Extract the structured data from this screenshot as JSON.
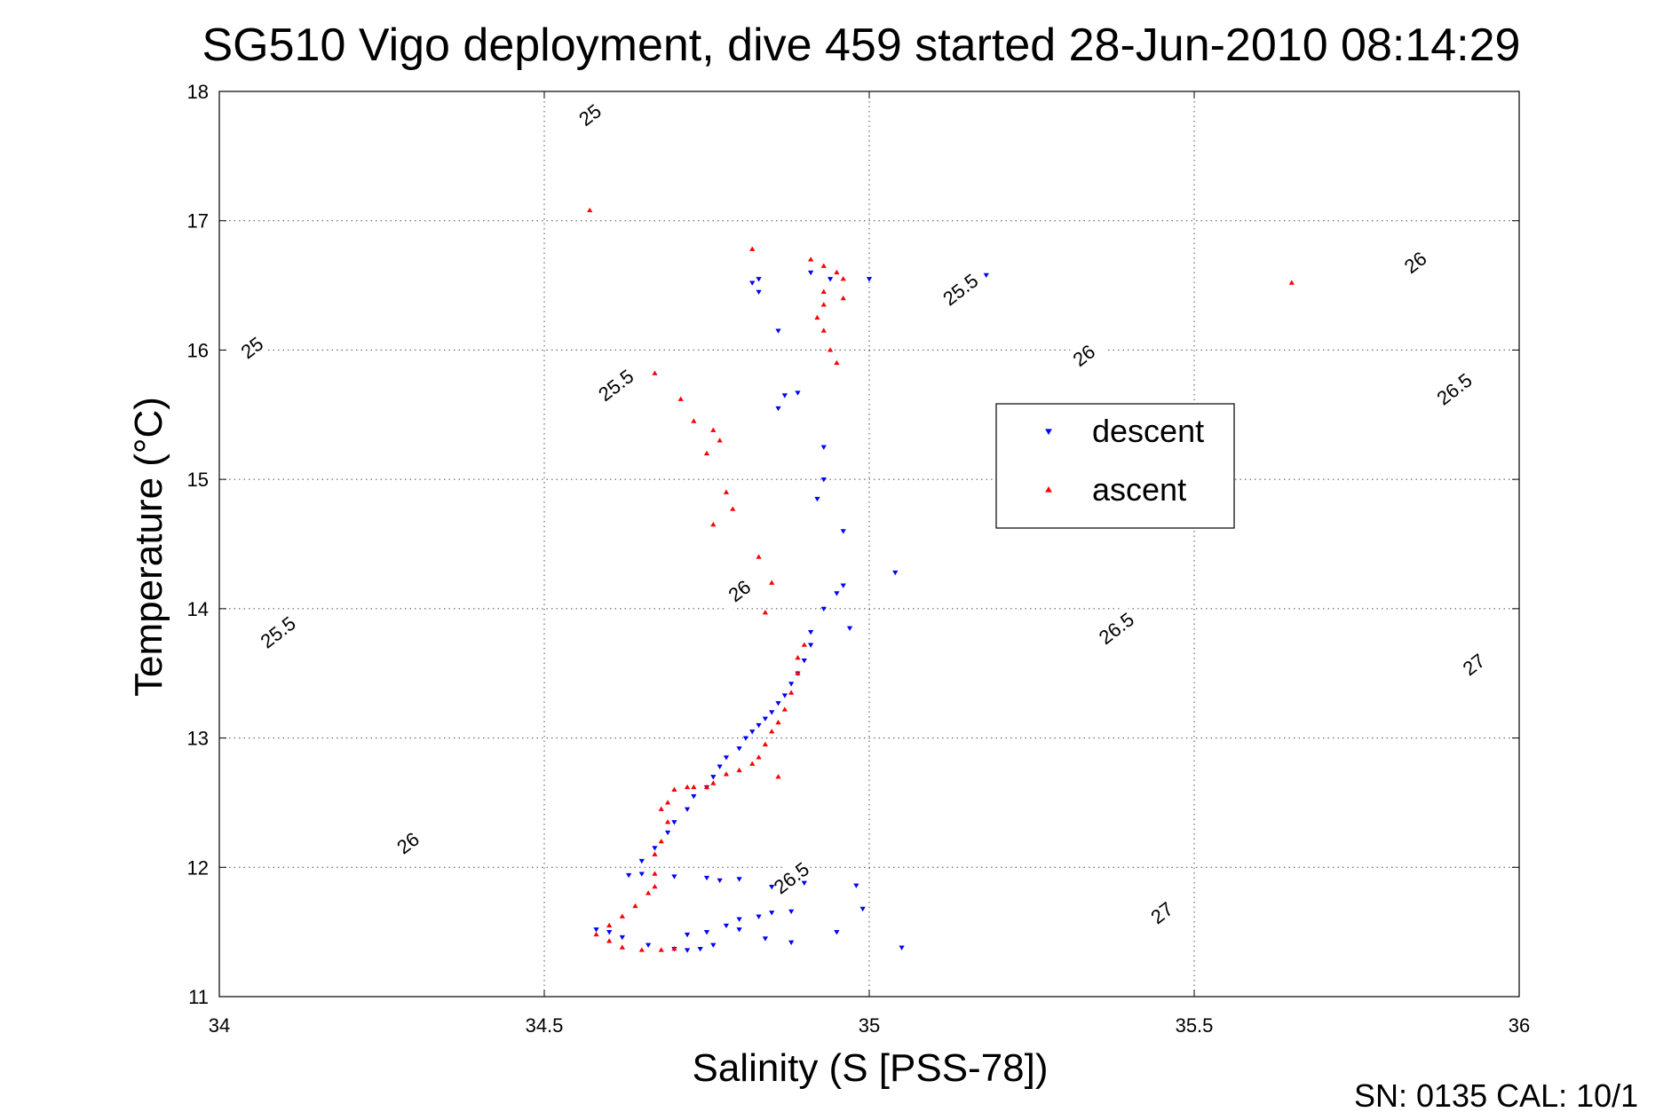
{
  "chart_data": {
    "type": "scatter",
    "title": "SG510 Vigo deployment, dive 459 started 28-Jun-2010 08:14:29",
    "xlabel": "Salinity (S [PSS-78])",
    "ylabel": "Temperature (°C)",
    "xlim": [
      34,
      36
    ],
    "ylim": [
      11,
      18
    ],
    "xticks": [
      "34",
      "34.5",
      "35",
      "35.5",
      "36"
    ],
    "yticks": [
      "11",
      "12",
      "13",
      "14",
      "15",
      "16",
      "17",
      "18"
    ],
    "grid": true,
    "legend_position": "center-right",
    "footer": "SN: 0135  CAL: 10/1",
    "density_contours": {
      "levels": [
        25,
        25.5,
        26,
        26.5,
        27
      ],
      "labels": [
        {
          "text": "25",
          "s": 34.57,
          "t": 17.82
        },
        {
          "text": "25",
          "s": 34.05,
          "t": 16.02
        },
        {
          "text": "25.5",
          "s": 35.14,
          "t": 16.47
        },
        {
          "text": "25.5",
          "s": 34.61,
          "t": 15.73
        },
        {
          "text": "25.5",
          "s": 34.09,
          "t": 13.82
        },
        {
          "text": "26",
          "s": 35.84,
          "t": 16.68
        },
        {
          "text": "26",
          "s": 35.33,
          "t": 15.96
        },
        {
          "text": "26",
          "s": 34.8,
          "t": 14.14
        },
        {
          "text": "26",
          "s": 34.29,
          "t": 12.19
        },
        {
          "text": "26.5",
          "s": 35.9,
          "t": 15.7
        },
        {
          "text": "26.5",
          "s": 35.38,
          "t": 13.85
        },
        {
          "text": "26.5",
          "s": 34.88,
          "t": 11.92
        },
        {
          "text": "27",
          "s": 35.93,
          "t": 13.57
        },
        {
          "text": "27",
          "s": 35.45,
          "t": 11.65
        }
      ]
    },
    "series": [
      {
        "name": "descent",
        "color": "#0000ff",
        "marker": "triangle-down",
        "points": [
          [
            34.58,
            11.52
          ],
          [
            34.6,
            11.5
          ],
          [
            34.62,
            11.46
          ],
          [
            34.66,
            11.4
          ],
          [
            34.7,
            11.37
          ],
          [
            34.72,
            11.36
          ],
          [
            34.74,
            11.37
          ],
          [
            34.76,
            11.4
          ],
          [
            34.72,
            11.48
          ],
          [
            34.75,
            11.5
          ],
          [
            34.78,
            11.55
          ],
          [
            34.8,
            11.6
          ],
          [
            34.83,
            11.62
          ],
          [
            34.85,
            11.65
          ],
          [
            34.88,
            11.66
          ],
          [
            34.8,
            11.52
          ],
          [
            34.84,
            11.45
          ],
          [
            34.88,
            11.42
          ],
          [
            34.95,
            11.5
          ],
          [
            34.99,
            11.68
          ],
          [
            34.98,
            11.86
          ],
          [
            35.05,
            11.38
          ],
          [
            34.63,
            11.94
          ],
          [
            34.65,
            11.95
          ],
          [
            34.7,
            11.93
          ],
          [
            34.75,
            11.92
          ],
          [
            34.77,
            11.9
          ],
          [
            34.8,
            11.91
          ],
          [
            34.85,
            11.85
          ],
          [
            34.9,
            11.88
          ],
          [
            34.65,
            12.05
          ],
          [
            34.67,
            12.15
          ],
          [
            34.69,
            12.27
          ],
          [
            34.7,
            12.35
          ],
          [
            34.72,
            12.45
          ],
          [
            34.73,
            12.55
          ],
          [
            34.75,
            12.62
          ],
          [
            34.76,
            12.7
          ],
          [
            34.77,
            12.78
          ],
          [
            34.78,
            12.85
          ],
          [
            34.8,
            12.92
          ],
          [
            34.81,
            13.0
          ],
          [
            34.82,
            13.05
          ],
          [
            34.83,
            13.1
          ],
          [
            34.84,
            13.15
          ],
          [
            34.85,
            13.2
          ],
          [
            34.86,
            13.27
          ],
          [
            34.87,
            13.33
          ],
          [
            34.88,
            13.42
          ],
          [
            34.89,
            13.5
          ],
          [
            34.9,
            13.6
          ],
          [
            34.91,
            13.72
          ],
          [
            34.91,
            13.82
          ],
          [
            34.93,
            14.0
          ],
          [
            34.95,
            14.12
          ],
          [
            34.96,
            14.18
          ],
          [
            34.97,
            13.85
          ],
          [
            35.04,
            14.28
          ],
          [
            34.96,
            14.6
          ],
          [
            34.92,
            14.85
          ],
          [
            34.93,
            15.0
          ],
          [
            34.93,
            15.25
          ],
          [
            34.86,
            15.55
          ],
          [
            34.87,
            15.65
          ],
          [
            34.89,
            15.67
          ],
          [
            34.86,
            16.15
          ],
          [
            34.83,
            16.45
          ],
          [
            34.82,
            16.52
          ],
          [
            34.83,
            16.55
          ],
          [
            34.91,
            16.6
          ],
          [
            34.94,
            16.55
          ],
          [
            35.0,
            16.55
          ],
          [
            35.18,
            16.58
          ]
        ]
      },
      {
        "name": "ascent",
        "color": "#ff0000",
        "marker": "triangle-up",
        "points": [
          [
            34.57,
            17.08
          ],
          [
            34.82,
            16.78
          ],
          [
            34.91,
            16.7
          ],
          [
            34.93,
            16.65
          ],
          [
            34.95,
            16.6
          ],
          [
            34.96,
            16.55
          ],
          [
            34.93,
            16.45
          ],
          [
            34.96,
            16.4
          ],
          [
            34.93,
            16.35
          ],
          [
            34.92,
            16.25
          ],
          [
            34.93,
            16.15
          ],
          [
            34.94,
            16.0
          ],
          [
            34.95,
            15.9
          ],
          [
            35.65,
            16.52
          ],
          [
            34.67,
            15.82
          ],
          [
            34.71,
            15.62
          ],
          [
            34.73,
            15.45
          ],
          [
            34.76,
            15.38
          ],
          [
            34.75,
            15.2
          ],
          [
            34.77,
            15.3
          ],
          [
            34.78,
            14.9
          ],
          [
            34.79,
            14.77
          ],
          [
            34.76,
            14.65
          ],
          [
            34.83,
            14.4
          ],
          [
            34.84,
            13.97
          ],
          [
            34.85,
            14.2
          ],
          [
            34.9,
            13.72
          ],
          [
            34.89,
            13.62
          ],
          [
            34.89,
            13.5
          ],
          [
            34.88,
            13.35
          ],
          [
            34.87,
            13.22
          ],
          [
            34.86,
            13.12
          ],
          [
            34.85,
            13.05
          ],
          [
            34.84,
            12.95
          ],
          [
            34.83,
            12.85
          ],
          [
            34.82,
            12.8
          ],
          [
            34.8,
            12.75
          ],
          [
            34.78,
            12.72
          ],
          [
            34.76,
            12.65
          ],
          [
            34.75,
            12.62
          ],
          [
            34.73,
            12.62
          ],
          [
            34.72,
            12.62
          ],
          [
            34.7,
            12.6
          ],
          [
            34.69,
            12.5
          ],
          [
            34.68,
            12.45
          ],
          [
            34.69,
            12.35
          ],
          [
            34.68,
            12.2
          ],
          [
            34.67,
            12.1
          ],
          [
            34.67,
            11.95
          ],
          [
            34.67,
            11.85
          ],
          [
            34.66,
            11.8
          ],
          [
            34.64,
            11.7
          ],
          [
            34.62,
            11.62
          ],
          [
            34.6,
            11.55
          ],
          [
            34.58,
            11.48
          ],
          [
            34.6,
            11.43
          ],
          [
            34.62,
            11.38
          ],
          [
            34.65,
            11.36
          ],
          [
            34.68,
            11.36
          ],
          [
            34.7,
            11.37
          ],
          [
            34.86,
            12.7
          ]
        ]
      }
    ]
  }
}
